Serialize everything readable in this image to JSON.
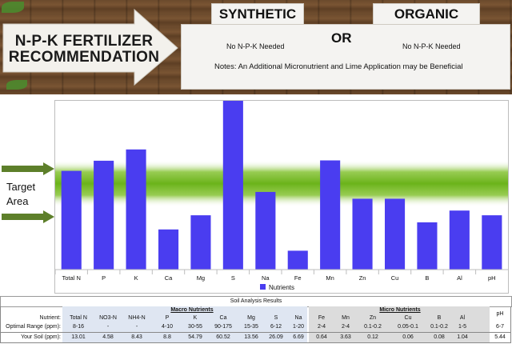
{
  "header": {
    "title_line1": "N-P-K FERTILIZER",
    "title_line2": "RECOMMENDATION",
    "synthetic_label": "SYNTHETIC",
    "organic_label": "ORGANIC",
    "or_label": "OR",
    "synthetic_value": "No N-P-K Needed",
    "organic_value": "No N-P-K Needed",
    "notes": "Notes: An Additional Micronutrient and Lime Application may be Beneficial"
  },
  "target_area_label": [
    "Target",
    "Area"
  ],
  "chart_data": {
    "type": "bar",
    "categories": [
      "Total N",
      "P",
      "K",
      "Ca",
      "Mg",
      "S",
      "Na",
      "Fe",
      "Mn",
      "Zn",
      "Cu",
      "B",
      "Al",
      "pH"
    ],
    "series": [
      {
        "name": "Nutrients",
        "values": [
          0.585,
          0.645,
          0.712,
          0.238,
          0.322,
          1.0,
          0.46,
          0.112,
          0.647,
          0.42,
          0.42,
          0.28,
          0.35,
          0.322
        ]
      }
    ],
    "values_unit": "fraction of plot height (no numeric axis shown)",
    "target_band": [
      0.42,
      0.6
    ],
    "legend_position": "bottom",
    "colors": {
      "bar": "#4a3df0",
      "band": "#7cc11c",
      "arrow": "#5d7f2a"
    }
  },
  "table": {
    "title": "Soil Analysis Results",
    "macro_label": "Macro Nutrients",
    "micro_label": "Micro Nutrients",
    "row_labels": [
      "Nutrient:",
      "Optimal Range (ppm):",
      "Your Soil (ppm):"
    ],
    "macro": {
      "nutrients": [
        "Total N",
        "NO3-N",
        "NH4-N",
        "P",
        "K",
        "Ca",
        "Mg",
        "S",
        "Na"
      ],
      "optimal": [
        "8-16",
        "-",
        "-",
        "4-10",
        "30-55",
        "90-175",
        "15-35",
        "6-12",
        "1-20"
      ],
      "soil": [
        "13.01",
        "4.58",
        "8.43",
        "8.8",
        "54.79",
        "60.52",
        "13.56",
        "26.09",
        "6.69"
      ]
    },
    "micro": {
      "nutrients": [
        "Fe",
        "Mn",
        "Zn",
        "Cu",
        "B",
        "Al"
      ],
      "optimal": [
        "2-4",
        "2-4",
        "0.1-0.2",
        "0.05-0.1",
        "0.1-0.2",
        "1-5"
      ],
      "soil": [
        "0.64",
        "3.63",
        "0.12",
        "0.06",
        "0.08",
        "1.04"
      ]
    },
    "ph": {
      "label": "pH",
      "optimal": "6-7",
      "soil": "5.44"
    }
  }
}
